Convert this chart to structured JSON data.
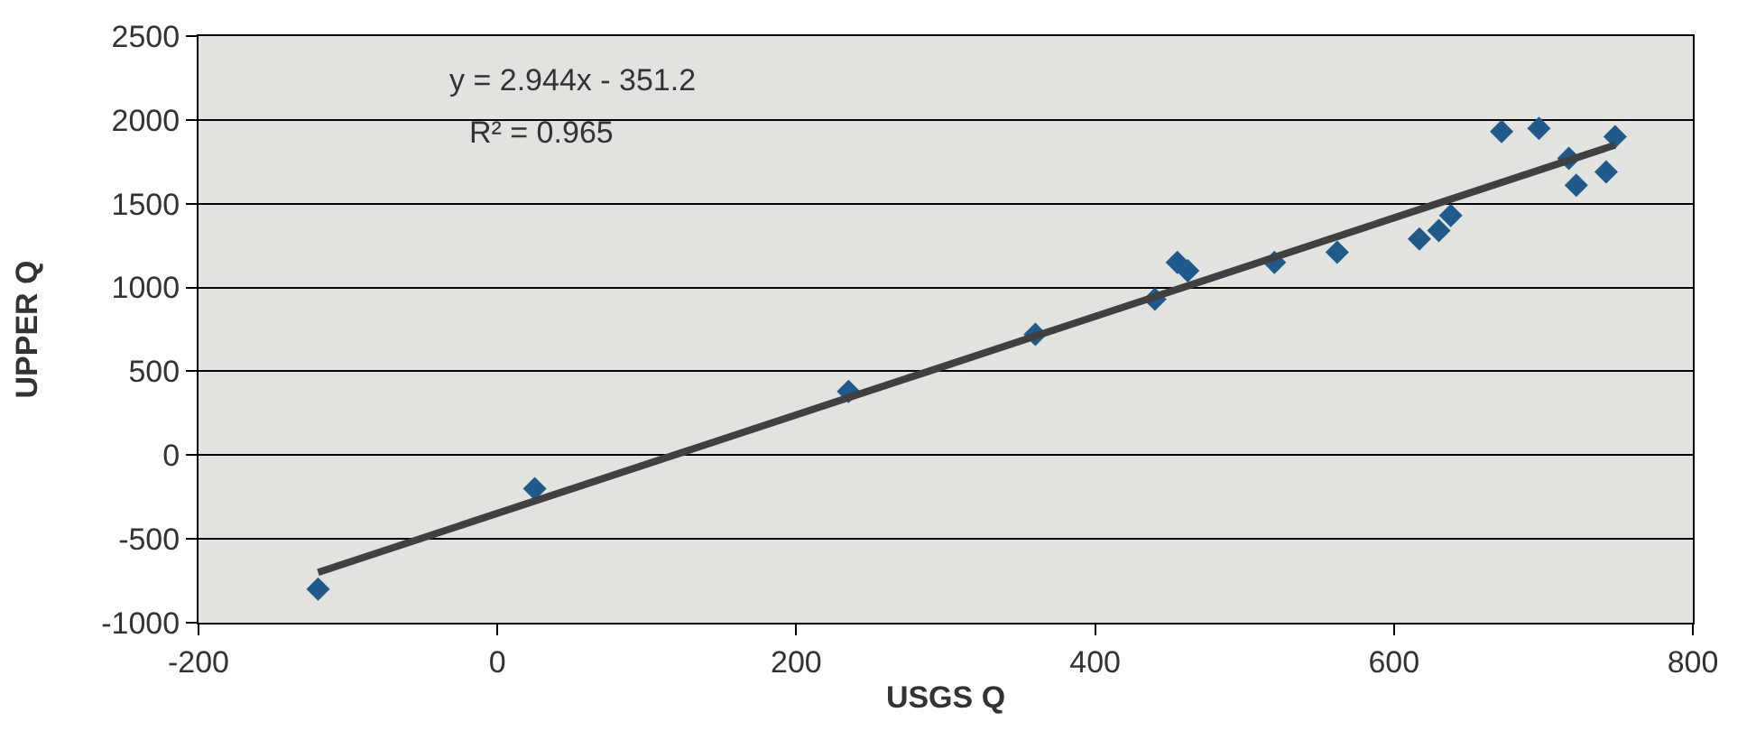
{
  "chart_data": {
    "type": "scatter",
    "xlabel": "USGS Q",
    "ylabel": "UPPER Q",
    "annotations": [
      "y = 2.944x - 351.2",
      "R² = 0.965"
    ],
    "xlim": [
      -200,
      800
    ],
    "xticks": [
      -200,
      0,
      200,
      400,
      600,
      800
    ],
    "ylim": [
      -1000,
      2500
    ],
    "yticks": [
      -1000,
      -500,
      0,
      500,
      1000,
      1500,
      2000,
      2500
    ],
    "grid": "y",
    "marker": "diamond",
    "series": [
      {
        "color": "#1f5a8a",
        "x": [
          -120,
          25,
          235,
          360,
          440,
          455,
          462,
          520,
          562,
          617,
          630,
          638,
          672,
          697,
          717,
          722,
          742,
          748
        ],
        "values": [
          -800,
          -200,
          380,
          720,
          930,
          1150,
          1100,
          1150,
          1210,
          1290,
          1340,
          1430,
          1930,
          1950,
          1770,
          1610,
          1690,
          1900
        ]
      },
      {
        "type": "line",
        "color": "#404040",
        "x": [
          -120,
          748
        ],
        "values": [
          -700,
          1850
        ],
        "marker": "none",
        "line_style": "solid"
      }
    ]
  }
}
